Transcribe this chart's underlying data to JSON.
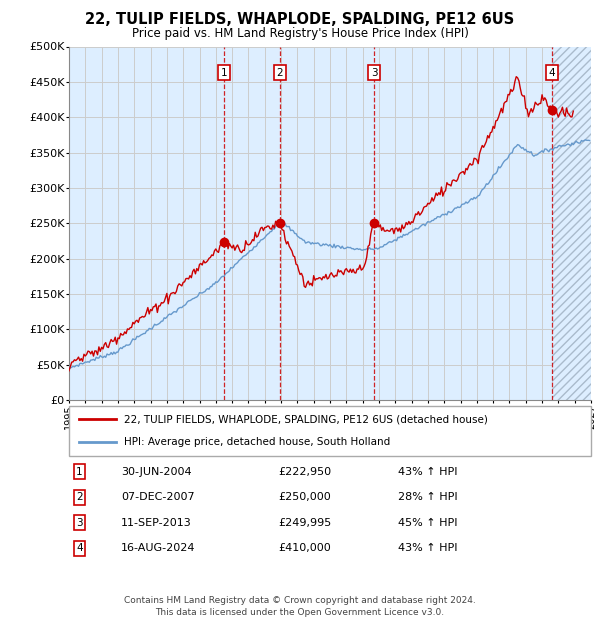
{
  "title": "22, TULIP FIELDS, WHAPLODE, SPALDING, PE12 6US",
  "subtitle": "Price paid vs. HM Land Registry's House Price Index (HPI)",
  "transactions": [
    {
      "num": 1,
      "date": "30-JUN-2004",
      "year": 2004.5,
      "price": 222950,
      "pct": "43%",
      "dir": "↑"
    },
    {
      "num": 2,
      "date": "07-DEC-2007",
      "year": 2007.92,
      "price": 250000,
      "pct": "28%",
      "dir": "↑"
    },
    {
      "num": 3,
      "date": "11-SEP-2013",
      "year": 2013.7,
      "price": 249995,
      "pct": "45%",
      "dir": "↑"
    },
    {
      "num": 4,
      "date": "16-AUG-2024",
      "year": 2024.6,
      "price": 410000,
      "pct": "43%",
      "dir": "↑"
    }
  ],
  "hpi_label": "HPI: Average price, detached house, South Holland",
  "price_label": "22, TULIP FIELDS, WHAPLODE, SPALDING, PE12 6US (detached house)",
  "footer1": "Contains HM Land Registry data © Crown copyright and database right 2024.",
  "footer2": "This data is licensed under the Open Government Licence v3.0.",
  "ylim": [
    0,
    500000
  ],
  "xlim_start": 1995.5,
  "xlim_end": 2027.0,
  "price_color": "#cc0000",
  "hpi_color": "#6699cc",
  "grid_color": "#cccccc",
  "bg_color": "#ddeeff",
  "hatch_color": "#c8d8e8",
  "future_start": 2024.62
}
